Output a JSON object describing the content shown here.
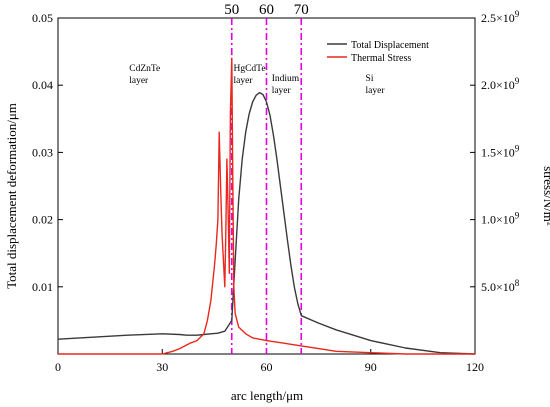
{
  "chart_data": {
    "type": "line",
    "xlabel": "arc length/μm",
    "ylabel_left": "Total displacement deformation/μm",
    "ylabel_right": "stress/N/m²",
    "xlim": [
      0,
      120
    ],
    "ylim_left": [
      0,
      0.05
    ],
    "ylim_right": [
      0,
      2500000000
    ],
    "x_ticks": [
      "0",
      "30",
      "60",
      "90",
      "120"
    ],
    "y_left_ticks": [
      "0.01",
      "0.02",
      "0.03",
      "0.04",
      "0.05"
    ],
    "y_right_ticks": [
      {
        "base": "5.0×10",
        "exp": "8",
        "value": 500000000
      },
      {
        "base": "1.0×10",
        "exp": "9",
        "value": 1000000000
      },
      {
        "base": "1.5×10",
        "exp": "9",
        "value": 1500000000
      },
      {
        "base": "2.0×10",
        "exp": "9",
        "value": 2000000000
      },
      {
        "base": "2.5×10",
        "exp": "9",
        "value": 2500000000
      }
    ],
    "grid": false,
    "legend_position": "top-right",
    "series": [
      {
        "name": "Total Displacement",
        "axis": "left",
        "color": "#3a3a3a",
        "x": [
          0,
          10,
          20,
          30,
          35,
          37,
          40,
          42,
          44,
          46,
          48,
          50,
          51,
          52,
          53,
          54,
          55,
          56,
          57,
          58,
          59,
          60,
          61,
          62,
          63,
          64,
          65,
          66,
          67,
          68,
          69,
          70,
          75,
          80,
          90,
          100,
          110,
          120
        ],
        "y": [
          0.0022,
          0.0025,
          0.0028,
          0.003,
          0.0029,
          0.0028,
          0.0028,
          0.0029,
          0.003,
          0.0031,
          0.0034,
          0.005,
          0.014,
          0.023,
          0.029,
          0.033,
          0.0357,
          0.0375,
          0.0385,
          0.0389,
          0.0386,
          0.0375,
          0.0355,
          0.0325,
          0.029,
          0.025,
          0.021,
          0.017,
          0.0133,
          0.01,
          0.0075,
          0.0057,
          0.0046,
          0.0036,
          0.002,
          0.0009,
          0.0002,
          0.0
        ]
      },
      {
        "name": "Thermal Stress",
        "axis": "right",
        "color": "#e8281e",
        "x": [
          0,
          10,
          20,
          30,
          33,
          35,
          38,
          40,
          42,
          43,
          44,
          45,
          45.5,
          46,
          46.4,
          46.8,
          47.2,
          47.6,
          48,
          48.3,
          48.6,
          49,
          49.3,
          49.6,
          50,
          50.3,
          50.6,
          51,
          52,
          54,
          56,
          60,
          65,
          70,
          75,
          80,
          90,
          100,
          120
        ],
        "y": [
          0,
          0,
          0,
          0,
          20000000,
          40000000,
          80000000,
          100000000,
          150000000,
          250000000,
          400000000,
          650000000,
          800000000,
          1000000000,
          1650000000,
          1250000000,
          900000000,
          700000000,
          500000000,
          900000000,
          1450000000,
          1000000000,
          600000000,
          1800000000,
          2200000000,
          1300000000,
          500000000,
          300000000,
          200000000,
          150000000,
          120000000,
          100000000,
          80000000,
          60000000,
          40000000,
          20000000,
          10000000,
          0,
          0
        ]
      }
    ],
    "boundaries": [
      {
        "x": 50,
        "label": "50"
      },
      {
        "x": 60,
        "label": "60"
      },
      {
        "x": 70,
        "label": "70"
      }
    ],
    "boundary_color": "#e000e0",
    "layer_labels": [
      {
        "line1": "CdZnTe",
        "line2": "layer",
        "x": 20.5,
        "y": 0.0421
      },
      {
        "line1": "HgCdTe",
        "line2": "layer",
        "x": 50.5,
        "y": 0.0421
      },
      {
        "line1": "Indium",
        "line2": "layer",
        "x": 61.5,
        "y": 0.0406
      },
      {
        "line1": "Si",
        "line2": "layer",
        "x": 88.5,
        "y": 0.0406
      }
    ]
  }
}
